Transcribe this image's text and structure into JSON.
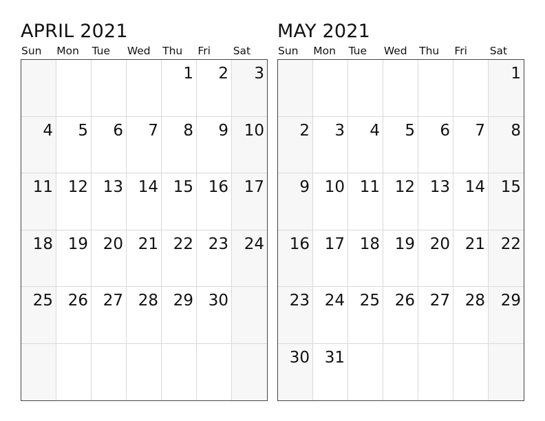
{
  "weekdays": [
    "Sun",
    "Mon",
    "Tue",
    "Wed",
    "Thu",
    "Fri",
    "Sat"
  ],
  "months": [
    {
      "id": "april",
      "title": "APRIL 2021",
      "weeks": [
        [
          "",
          "",
          "",
          "",
          "1",
          "2",
          "3"
        ],
        [
          "4",
          "5",
          "6",
          "7",
          "8",
          "9",
          "10"
        ],
        [
          "11",
          "12",
          "13",
          "14",
          "15",
          "16",
          "17"
        ],
        [
          "18",
          "19",
          "20",
          "21",
          "22",
          "23",
          "24"
        ],
        [
          "25",
          "26",
          "27",
          "28",
          "29",
          "30",
          ""
        ],
        [
          "",
          "",
          "",
          "",
          "",
          "",
          ""
        ]
      ]
    },
    {
      "id": "may",
      "title": "MAY 2021",
      "weeks": [
        [
          "",
          "",
          "",
          "",
          "",
          "",
          "1"
        ],
        [
          "2",
          "3",
          "4",
          "5",
          "6",
          "7",
          "8"
        ],
        [
          "9",
          "10",
          "11",
          "12",
          "13",
          "14",
          "15"
        ],
        [
          "16",
          "17",
          "18",
          "19",
          "20",
          "21",
          "22"
        ],
        [
          "23",
          "24",
          "25",
          "26",
          "27",
          "28",
          "29"
        ],
        [
          "30",
          "31",
          "",
          "",
          "",
          "",
          ""
        ]
      ]
    }
  ],
  "colors": {
    "weekend_cell": "#f7f7f7",
    "grid_line": "#d9d9d9",
    "border": "#444444",
    "text": "#111111"
  }
}
